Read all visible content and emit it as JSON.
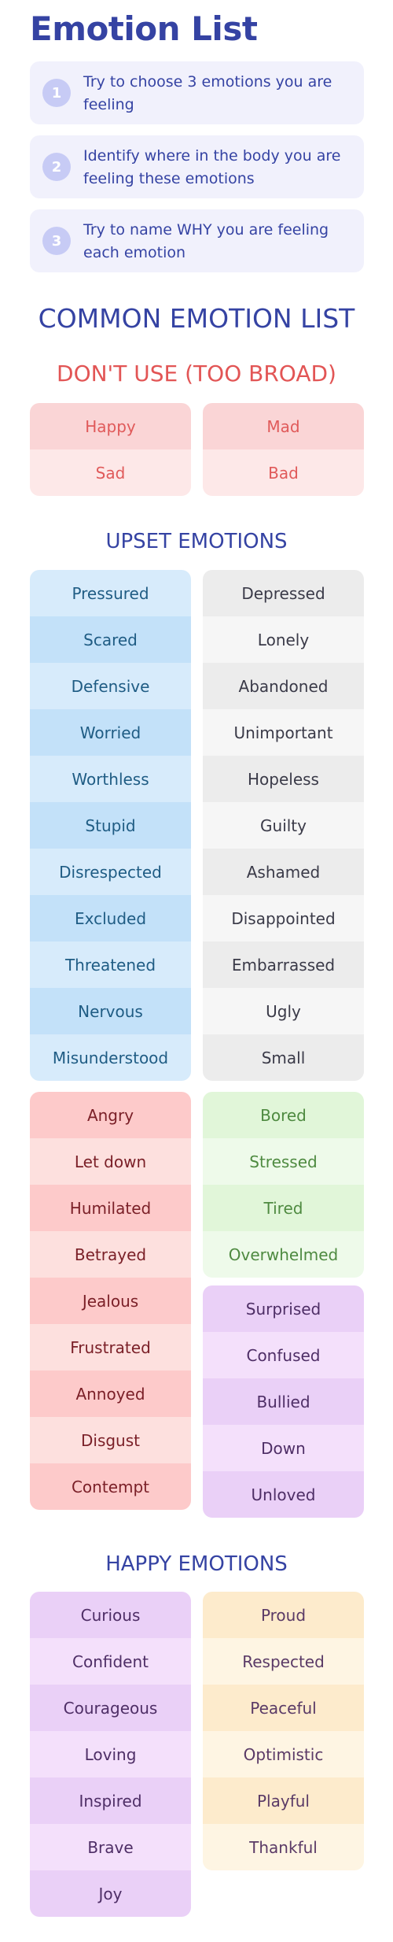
{
  "title": "Emotion List",
  "steps": [
    {
      "num": "1",
      "text": "Try to choose 3 emotions you are feeling"
    },
    {
      "num": "2",
      "text": "Identify where in the body you are feeling these emotions"
    },
    {
      "num": "3",
      "text": "Try to name WHY you are feeling each emotion"
    }
  ],
  "common_heading": "COMMON EMOTION LIST",
  "dont_use": {
    "heading": "DON'T USE (TOO BROAD)",
    "left": [
      "Happy",
      "Sad"
    ],
    "right": [
      "Mad",
      "Bad"
    ]
  },
  "upset": {
    "heading": "UPSET EMOTIONS",
    "blue": [
      "Pressured",
      "Scared",
      "Defensive",
      "Worried",
      "Worthless",
      "Stupid",
      "Disrespected",
      "Excluded",
      "Threatened",
      "Nervous",
      "Misunderstood"
    ],
    "gray": [
      "Depressed",
      "Lonely",
      "Abandoned",
      "Unimportant",
      "Hopeless",
      "Guilty",
      "Ashamed",
      "Disappointed",
      "Embarrassed",
      "Ugly",
      "Small"
    ],
    "pink": [
      "Angry",
      "Let down",
      "Humilated",
      "Betrayed",
      "Jealous",
      "Frustrated",
      "Annoyed",
      "Disgust",
      "Contempt"
    ],
    "green": [
      "Bored",
      "Stressed",
      "Tired",
      "Overwhelmed"
    ],
    "purple": [
      "Surprised",
      "Confused",
      "Bullied",
      "Down",
      "Unloved"
    ]
  },
  "happy": {
    "heading": "HAPPY EMOTIONS",
    "purple": [
      "Curious",
      "Confident",
      "Courageous",
      "Loving",
      "Inspired",
      "Brave",
      "Joy"
    ],
    "cream": [
      "Proud",
      "Respected",
      "Peaceful",
      "Optimistic",
      "Playful",
      "Thankful"
    ]
  }
}
